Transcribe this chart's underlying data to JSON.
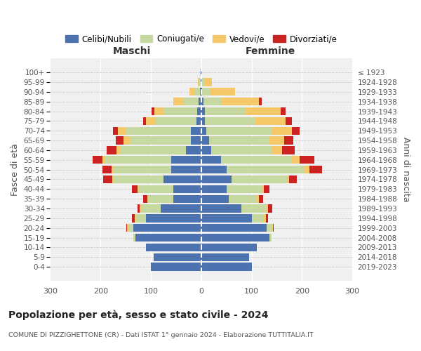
{
  "age_groups": [
    "0-4",
    "5-9",
    "10-14",
    "15-19",
    "20-24",
    "25-29",
    "30-34",
    "35-39",
    "40-44",
    "45-49",
    "50-54",
    "55-59",
    "60-64",
    "65-69",
    "70-74",
    "75-79",
    "80-84",
    "85-89",
    "90-94",
    "95-99",
    "100+"
  ],
  "birth_years": [
    "2019-2023",
    "2014-2018",
    "2009-2013",
    "2004-2008",
    "1999-2003",
    "1994-1998",
    "1989-1993",
    "1984-1988",
    "1979-1983",
    "1974-1978",
    "1969-1973",
    "1964-1968",
    "1959-1963",
    "1954-1958",
    "1949-1953",
    "1944-1948",
    "1939-1943",
    "1934-1938",
    "1929-1933",
    "1924-1928",
    "≤ 1923"
  ],
  "maschi": {
    "celibi": [
      100,
      95,
      110,
      130,
      135,
      110,
      80,
      55,
      55,
      75,
      60,
      60,
      30,
      20,
      20,
      10,
      8,
      5,
      2,
      1,
      1
    ],
    "coniugati": [
      0,
      0,
      0,
      5,
      10,
      20,
      40,
      50,
      70,
      100,
      115,
      130,
      130,
      120,
      130,
      80,
      65,
      30,
      10,
      3,
      1
    ],
    "vedovi": [
      0,
      0,
      0,
      0,
      2,
      2,
      2,
      2,
      2,
      2,
      3,
      6,
      8,
      15,
      15,
      20,
      20,
      20,
      12,
      2,
      0
    ],
    "divorziati": [
      0,
      0,
      0,
      0,
      2,
      5,
      5,
      8,
      10,
      18,
      18,
      20,
      20,
      15,
      10,
      5,
      5,
      0,
      0,
      0,
      0
    ]
  },
  "femmine": {
    "nubili": [
      100,
      95,
      110,
      135,
      130,
      100,
      80,
      55,
      50,
      60,
      50,
      40,
      20,
      15,
      10,
      8,
      8,
      5,
      2,
      1,
      1
    ],
    "coniugate": [
      0,
      0,
      0,
      5,
      10,
      25,
      50,
      55,
      70,
      110,
      155,
      140,
      120,
      120,
      130,
      100,
      80,
      35,
      15,
      5,
      0
    ],
    "vedove": [
      0,
      0,
      0,
      0,
      2,
      3,
      3,
      5,
      5,
      5,
      10,
      15,
      20,
      30,
      40,
      60,
      70,
      75,
      50,
      15,
      1
    ],
    "divorziate": [
      0,
      0,
      0,
      0,
      2,
      5,
      8,
      8,
      10,
      15,
      25,
      30,
      25,
      18,
      15,
      12,
      10,
      5,
      0,
      0,
      0
    ]
  },
  "colors": {
    "celibi": "#4c72b0",
    "coniugati": "#c5d9a0",
    "vedovi": "#f5c96a",
    "divorziati": "#cc2222"
  },
  "xlim": 300,
  "title": "Popolazione per età, sesso e stato civile - 2024",
  "subtitle": "COMUNE DI PIZZIGHETTONE (CR) - Dati ISTAT 1° gennaio 2024 - Elaborazione TUTTITALIA.IT",
  "ylabel_left": "Fasce di età",
  "ylabel_right": "Anni di nascita",
  "xlabel_left": "Maschi",
  "xlabel_right": "Femmine",
  "legend_labels": [
    "Celibi/Nubili",
    "Coniugati/e",
    "Vedovi/e",
    "Divorziati/e"
  ],
  "bg_color": "#f0f0f0"
}
